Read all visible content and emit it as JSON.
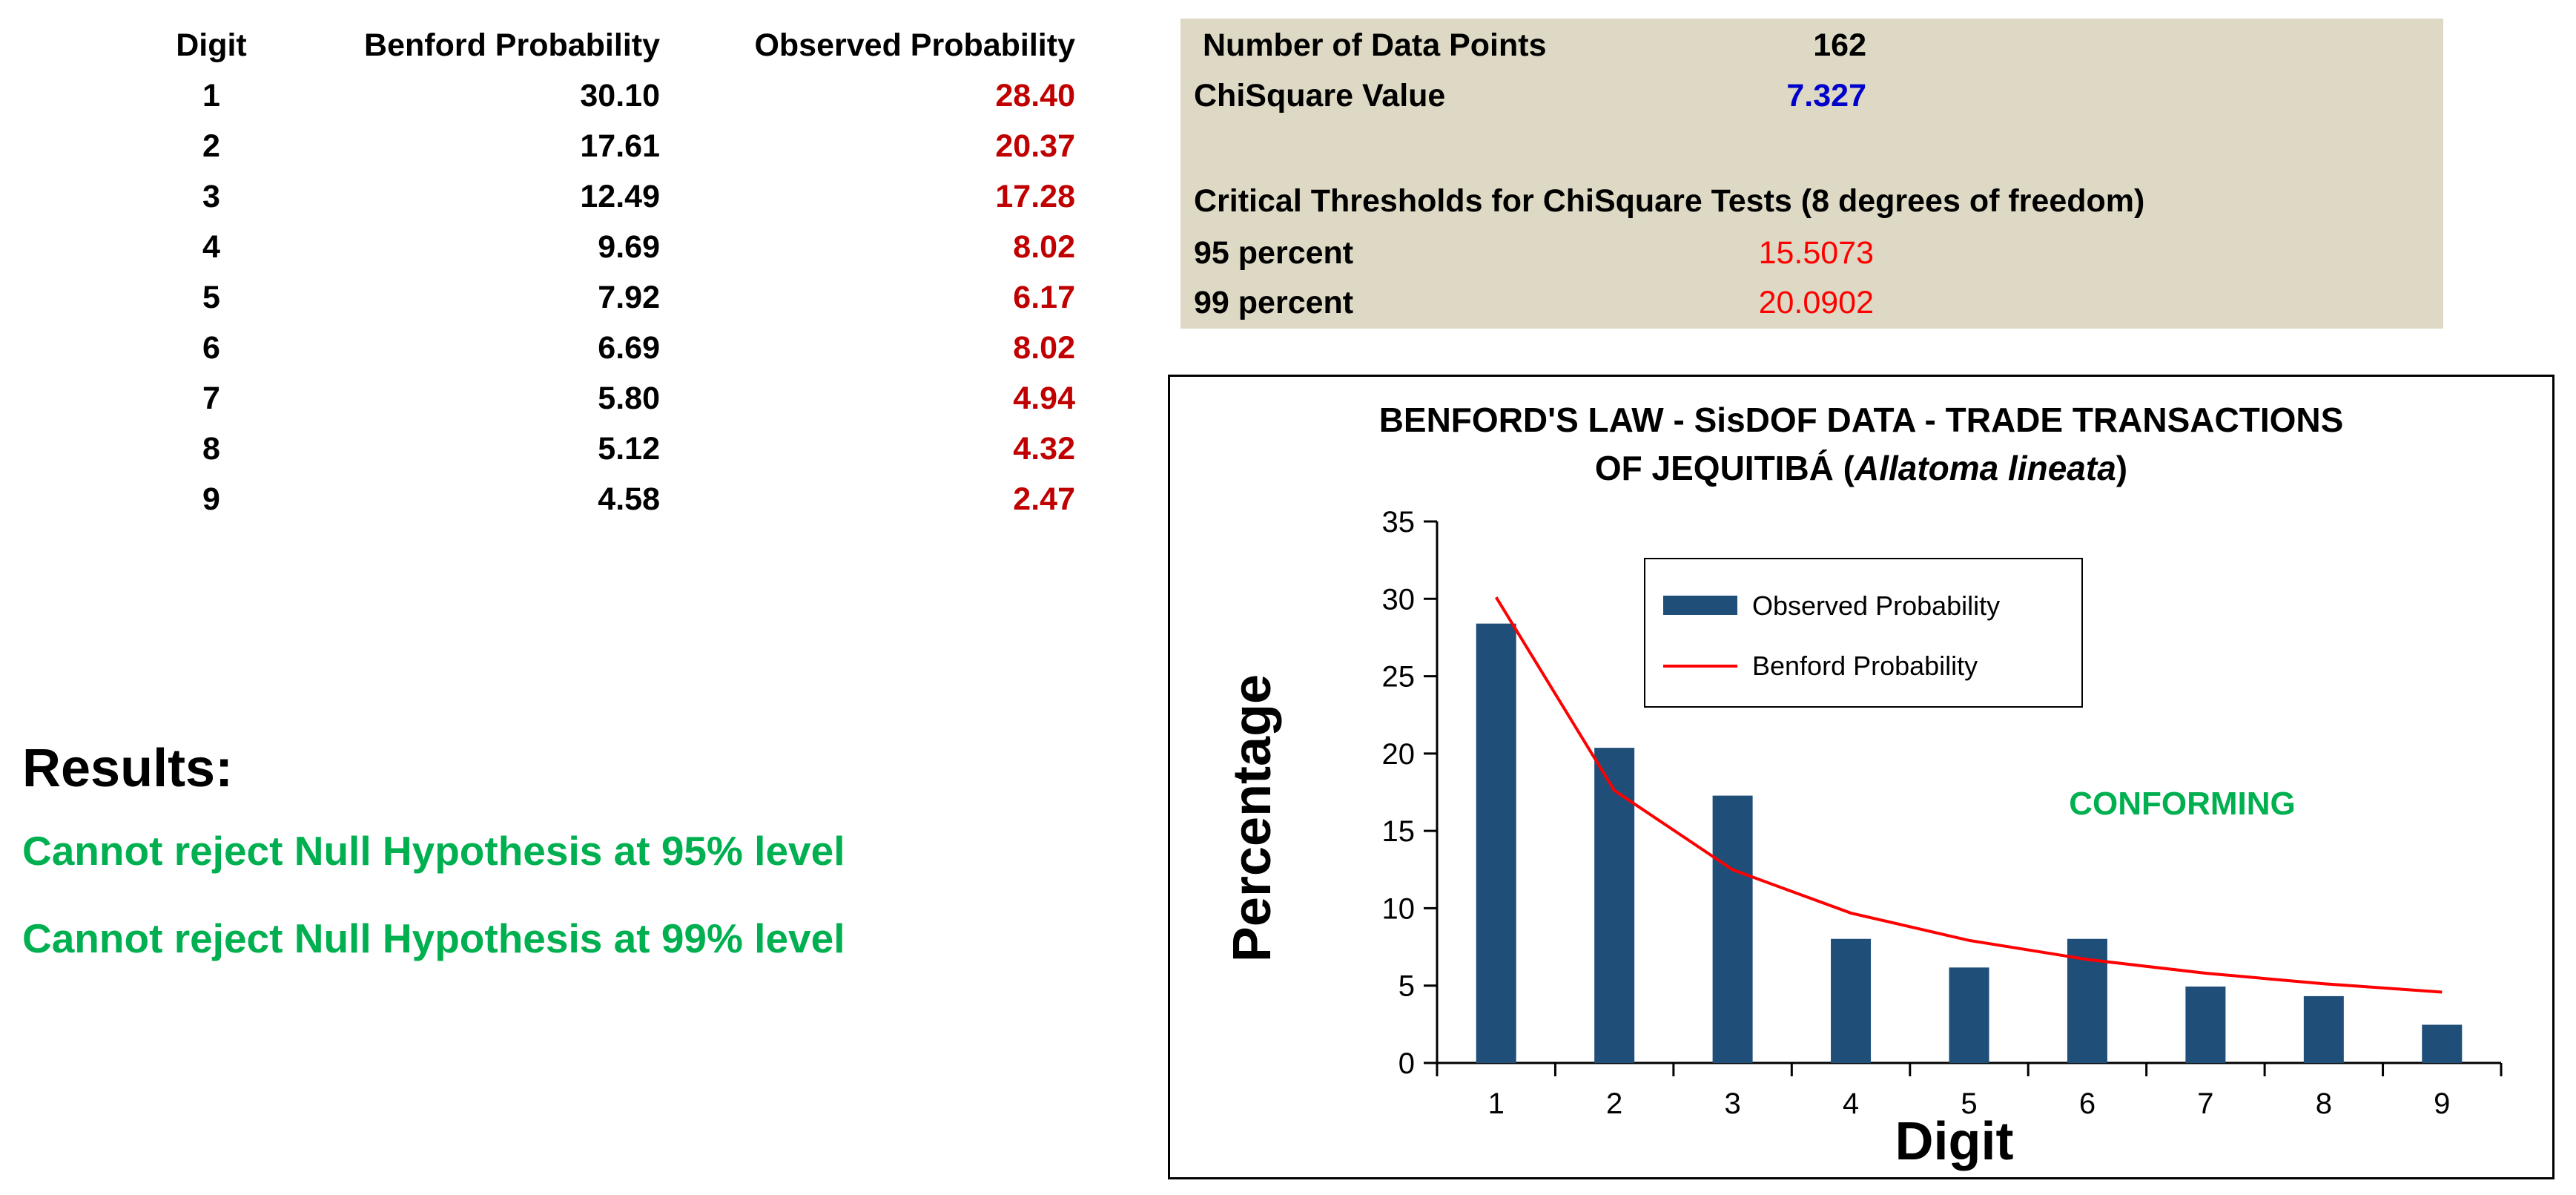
{
  "table": {
    "headers": [
      "Digit",
      "Benford Probability",
      "Observed Probability"
    ],
    "rows": [
      {
        "digit": "1",
        "benford": "30.10",
        "observed": "28.40"
      },
      {
        "digit": "2",
        "benford": "17.61",
        "observed": "20.37"
      },
      {
        "digit": "3",
        "benford": "12.49",
        "observed": "17.28"
      },
      {
        "digit": "4",
        "benford": "9.69",
        "observed": "8.02"
      },
      {
        "digit": "5",
        "benford": "7.92",
        "observed": "6.17"
      },
      {
        "digit": "6",
        "benford": "6.69",
        "observed": "8.02"
      },
      {
        "digit": "7",
        "benford": "5.80",
        "observed": "4.94"
      },
      {
        "digit": "8",
        "benford": "5.12",
        "observed": "4.32"
      },
      {
        "digit": "9",
        "benford": "4.58",
        "observed": "2.47"
      }
    ]
  },
  "stats": {
    "data_points_label": "Number of Data Points",
    "data_points_value": "162",
    "chi_label": "ChiSquare Value",
    "chi_value": "7.327",
    "thresholds_title": "Critical Thresholds for ChiSquare Tests (8 degrees of freedom)",
    "p95_label": "95 percent",
    "p95_value": "15.5073",
    "p99_label": "99 percent",
    "p99_value": "20.0902"
  },
  "results": {
    "title": "Results:",
    "line1": "Cannot reject Null Hypothesis at 95% level",
    "line2": "Cannot reject Null Hypothesis at 99% level"
  },
  "colors": {
    "bar": "#1f4e79",
    "line": "#ff0000",
    "conforming": "#00b050",
    "observed_text": "#c00000",
    "chi_text": "#0000cc",
    "panel_bg": "#ddd9c4"
  },
  "chart_data": {
    "type": "bar",
    "title_line1": "BENFORD'S LAW - SisDOF DATA - TRADE TRANSACTIONS",
    "title_line2_prefix": "OF JEQUITIBÁ (",
    "title_line2_italic": "Allatoma lineata",
    "title_line2_suffix": ")",
    "xlabel": "Digit",
    "ylabel": "Percentage",
    "annotation": "CONFORMING",
    "categories": [
      "1",
      "2",
      "3",
      "4",
      "5",
      "6",
      "7",
      "8",
      "9"
    ],
    "ylim": [
      0,
      35
    ],
    "yticks": [
      "0",
      "5",
      "10",
      "15",
      "20",
      "25",
      "30",
      "35"
    ],
    "series": [
      {
        "name": "Observed Probability",
        "type": "bar",
        "values": [
          28.4,
          20.37,
          17.28,
          8.02,
          6.17,
          8.02,
          4.94,
          4.32,
          2.47
        ]
      },
      {
        "name": "Benford Probability",
        "type": "line",
        "values": [
          30.1,
          17.61,
          12.49,
          9.69,
          7.92,
          6.69,
          5.8,
          5.12,
          4.58
        ]
      }
    ],
    "legend_position": "top-center",
    "grid": false
  }
}
